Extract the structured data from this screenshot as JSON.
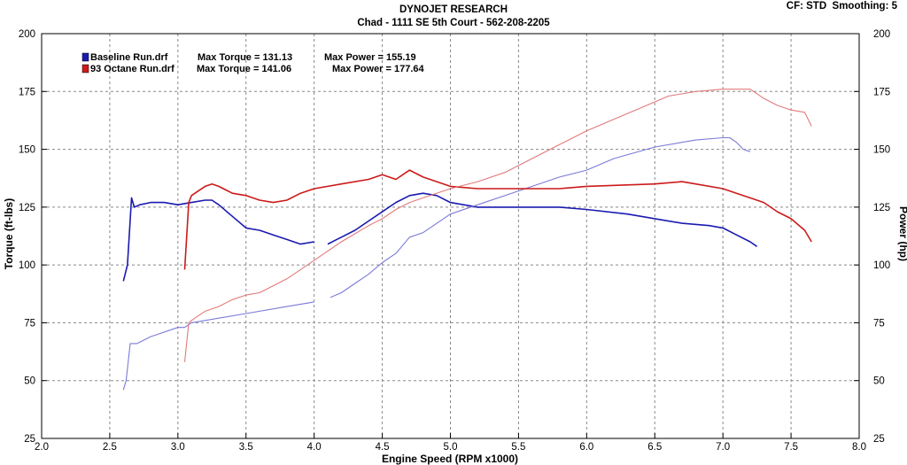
{
  "header": {
    "title": "DYNOJET RESEARCH",
    "subtitle": "Chad - 1111 SE 5th Court - 562-208-2205",
    "settings": "CF: STD  Smoothing: 5"
  },
  "chart_data": {
    "type": "line",
    "title": "DYNOJET RESEARCH",
    "subtitle": "Chad - 1111 SE 5th Court - 562-208-2205",
    "xlabel": "Engine Speed (RPM x1000)",
    "ylabel": "Torque (ft-lbs)",
    "y2label": "Power (hp)",
    "xlim": [
      2.0,
      8.0
    ],
    "ylim": [
      25,
      200
    ],
    "y2lim": [
      25,
      200
    ],
    "xticks": [
      "2.0",
      "2.5",
      "3.0",
      "3.5",
      "4.0",
      "4.5",
      "5.0",
      "5.5",
      "6.0",
      "6.5",
      "7.0",
      "7.5",
      "8.0"
    ],
    "yticks": [
      "25",
      "50",
      "75",
      "100",
      "125",
      "150",
      "175",
      "200"
    ],
    "grid": true,
    "legend_position": "top-left",
    "legend": [
      {
        "file": "Baseline Run.drf",
        "torque_label": "Max Torque = 131.13",
        "power_label": "Max Power = 155.19",
        "color": "#1a1ab0"
      },
      {
        "file": "93 Octane Run.drf",
        "torque_label": "Max Torque = 141.06",
        "power_label": "Max Power = 177.64",
        "color": "#cc1a1a"
      }
    ],
    "series": [
      {
        "name": "Baseline Run.drf Torque",
        "color": "#1a1ab0",
        "x": [
          2.6,
          2.63,
          2.66,
          2.68,
          2.72,
          2.8,
          2.9,
          3.0,
          3.1,
          3.2,
          3.25,
          3.3,
          3.4,
          3.5,
          3.6,
          3.7,
          3.8,
          3.9,
          4.0,
          null,
          4.1,
          4.2,
          4.3,
          4.4,
          4.5,
          4.6,
          4.7,
          4.8,
          4.9,
          5.0,
          5.2,
          5.5,
          5.8,
          6.0,
          6.3,
          6.5,
          6.7,
          6.9,
          7.0,
          7.1,
          7.2,
          7.25
        ],
        "y": [
          93,
          100,
          129,
          125,
          126,
          127,
          127,
          126,
          127,
          128,
          128,
          126,
          121,
          116,
          115,
          113,
          111,
          109,
          110,
          null,
          109,
          112,
          115,
          119,
          123,
          127,
          130,
          131,
          130,
          127,
          125,
          125,
          125,
          124,
          122,
          120,
          118,
          117,
          116,
          113,
          110,
          108
        ]
      },
      {
        "name": "Baseline Run.drf Power",
        "color": "#7a7ad8",
        "x": [
          2.6,
          2.62,
          2.65,
          2.7,
          2.8,
          3.0,
          3.05,
          3.1,
          3.2,
          3.5,
          3.8,
          4.0,
          null,
          4.12,
          4.2,
          4.3,
          4.4,
          4.5,
          4.6,
          4.7,
          4.8,
          5.0,
          5.2,
          5.5,
          5.8,
          6.0,
          6.2,
          6.5,
          6.8,
          7.0,
          7.05,
          7.1,
          7.15,
          7.2
        ],
        "y": [
          46,
          50,
          66,
          66,
          69,
          73,
          73,
          75,
          76,
          79,
          82,
          84,
          null,
          86,
          88,
          92,
          96,
          101,
          105,
          112,
          114,
          122,
          126,
          132,
          138,
          141,
          146,
          151,
          154,
          155,
          155,
          153,
          150,
          149
        ]
      },
      {
        "name": "93 Octane Run.drf Torque",
        "color": "#cc1a1a",
        "x": [
          3.05,
          3.08,
          3.1,
          3.15,
          3.2,
          3.25,
          3.3,
          3.4,
          3.5,
          3.6,
          3.7,
          3.8,
          3.9,
          4.0,
          4.2,
          4.4,
          4.5,
          4.6,
          4.7,
          4.8,
          5.0,
          5.2,
          5.4,
          5.6,
          5.8,
          6.0,
          6.5,
          6.7,
          6.8,
          7.0,
          7.1,
          7.2,
          7.3,
          7.4,
          7.5,
          7.6,
          7.65
        ],
        "y": [
          98,
          127,
          130,
          132,
          134,
          135,
          134,
          131,
          130,
          128,
          127,
          128,
          131,
          133,
          135,
          137,
          139,
          137,
          141,
          138,
          134,
          133,
          133,
          133,
          133,
          134,
          135,
          136,
          135,
          133,
          131,
          129,
          127,
          123,
          120,
          115,
          110
        ]
      },
      {
        "name": "93 Octane Run.drf Power",
        "color": "#e07a7a",
        "x": [
          3.05,
          3.08,
          3.1,
          3.15,
          3.2,
          3.3,
          3.4,
          3.5,
          3.6,
          3.7,
          3.8,
          3.9,
          4.0,
          4.2,
          4.4,
          4.5,
          4.6,
          4.7,
          4.8,
          5.0,
          5.2,
          5.4,
          5.6,
          5.8,
          6.0,
          6.2,
          6.4,
          6.6,
          6.8,
          7.0,
          7.1,
          7.2,
          7.3,
          7.4,
          7.5,
          7.6,
          7.65
        ],
        "y": [
          58,
          75,
          76,
          78,
          80,
          82,
          85,
          87,
          88,
          91,
          94,
          98,
          102,
          110,
          117,
          120,
          124,
          127,
          129,
          133,
          136,
          140,
          146,
          152,
          158,
          163,
          168,
          173,
          175,
          176,
          176,
          176,
          172,
          169,
          167,
          166,
          160
        ]
      }
    ]
  }
}
